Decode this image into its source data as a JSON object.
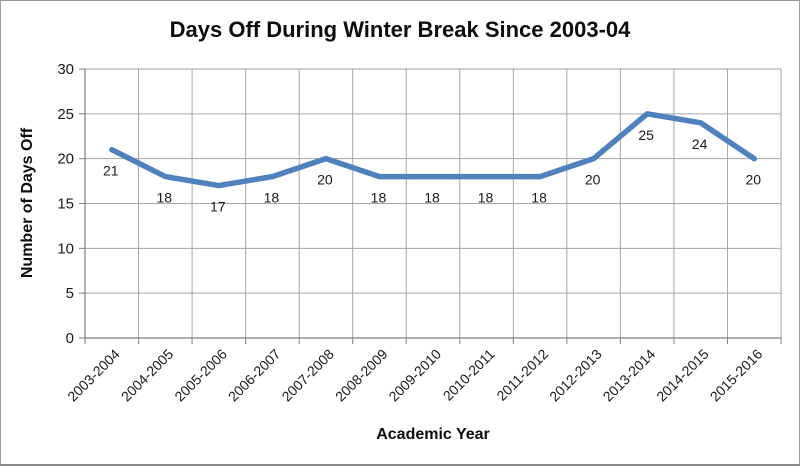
{
  "figure": {
    "border_color": "#9d9d9d"
  },
  "chart_data": {
    "type": "line",
    "title": "Days Off During Winter Break Since 2003-04",
    "xlabel": "Academic Year",
    "ylabel": "Number of Days Off",
    "categories": [
      "2003-2004",
      "2004-2005",
      "2005-2006",
      "2006-2007",
      "2007-2008",
      "2008-2009",
      "2009-2010",
      "2010-2011",
      "2011-2012",
      "2012-2013",
      "2013-2014",
      "2014-2015",
      "2015-2016"
    ],
    "values": [
      21,
      18,
      17,
      18,
      20,
      18,
      18,
      18,
      18,
      20,
      25,
      24,
      20
    ],
    "ylim": [
      0,
      30
    ],
    "yticks": [
      0,
      5,
      10,
      15,
      20,
      25,
      30
    ],
    "grid": true,
    "legend_position": "none",
    "data_labels_shown": true,
    "colors": {
      "line": "#4F81BD",
      "grid": "#A6A6A6",
      "axis": "#808080",
      "text": "#1a1a1a"
    }
  }
}
